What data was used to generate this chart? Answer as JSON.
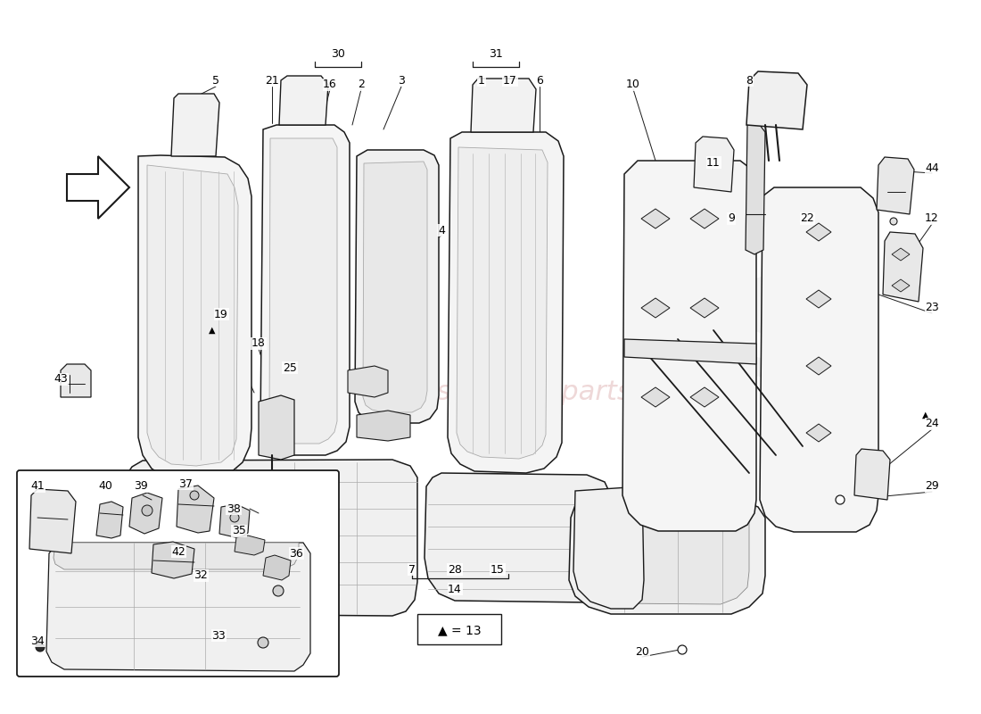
{
  "bg": "#ffffff",
  "lc": "#1a1a1a",
  "wm_text": "a passion for parts...",
  "wm_color": "#e8c8c8",
  "gs_color": "#d8d8d8",
  "fig_w": 11.0,
  "fig_h": 8.0,
  "dpi": 100
}
